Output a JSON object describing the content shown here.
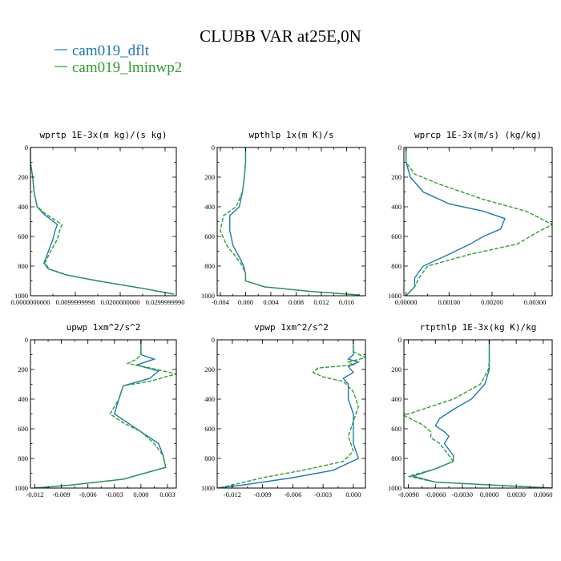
{
  "title": "CLUBB VAR at25E,0N",
  "colors": {
    "dflt": "#1f77b4",
    "lminwp2": "#2ca02c"
  },
  "chart_data": [
    {
      "type": "line",
      "title": "wprtp  1E-3x(m kg)/(s kg)",
      "xlim": [
        0.0,
        0.0325
      ],
      "ylim": [
        1000,
        0
      ],
      "y_ticks": [
        0,
        200,
        400,
        600,
        800,
        1000
      ],
      "x_ticks": [
        0.0,
        0.01,
        0.02,
        0.03
      ],
      "x_tick_labels": [
        "0.0000000000",
        "0.0099999998",
        "0.0200000000",
        "0.0299999990"
      ],
      "series": [
        {
          "name": "cam019_dflt",
          "color": "#1f77b4",
          "dashed": false,
          "points": [
            [
              0.0,
              0
            ],
            [
              0.0,
              100
            ],
            [
              0.0005,
              200
            ],
            [
              0.0008,
              300
            ],
            [
              0.0015,
              400
            ],
            [
              0.003,
              450
            ],
            [
              0.006,
              520
            ],
            [
              0.0055,
              560
            ],
            [
              0.005,
              620
            ],
            [
              0.004,
              700
            ],
            [
              0.003,
              780
            ],
            [
              0.004,
              820
            ],
            [
              0.008,
              860
            ],
            [
              0.015,
              900
            ],
            [
              0.025,
              950
            ],
            [
              0.032,
              990
            ]
          ]
        },
        {
          "name": "cam019_lminwp2",
          "color": "#2ca02c",
          "dashed": true,
          "points": [
            [
              0.0,
              0
            ],
            [
              0.0,
              100
            ],
            [
              0.0005,
              200
            ],
            [
              0.0008,
              300
            ],
            [
              0.0015,
              400
            ],
            [
              0.0035,
              450
            ],
            [
              0.007,
              520
            ],
            [
              0.0065,
              560
            ],
            [
              0.006,
              620
            ],
            [
              0.0045,
              700
            ],
            [
              0.0032,
              780
            ],
            [
              0.0042,
              820
            ],
            [
              0.0082,
              860
            ],
            [
              0.015,
              900
            ],
            [
              0.025,
              950
            ],
            [
              0.032,
              990
            ]
          ]
        }
      ]
    },
    {
      "type": "line",
      "title": "wpthlp  1x(m K)/s",
      "xlim": [
        -0.0045,
        0.019
      ],
      "ylim": [
        1000,
        0
      ],
      "y_ticks": [
        0,
        200,
        400,
        600,
        800,
        1000
      ],
      "x_ticks": [
        -0.004,
        0.0,
        0.004,
        0.008,
        0.012,
        0.016
      ],
      "x_tick_labels": [
        "-0.004",
        "0.000",
        "0.004",
        "0.008",
        "0.012",
        "0.016"
      ],
      "series": [
        {
          "name": "cam019_dflt",
          "color": "#1f77b4",
          "dashed": false,
          "points": [
            [
              0.0,
              0
            ],
            [
              0.0,
              100
            ],
            [
              -0.0002,
              200
            ],
            [
              -0.0005,
              300
            ],
            [
              -0.001,
              400
            ],
            [
              -0.0025,
              460
            ],
            [
              -0.0025,
              560
            ],
            [
              -0.002,
              660
            ],
            [
              -0.001,
              740
            ],
            [
              -0.0003,
              800
            ],
            [
              0.0,
              850
            ],
            [
              0.0,
              900
            ],
            [
              0.003,
              940
            ],
            [
              0.01,
              970
            ],
            [
              0.018,
              995
            ]
          ]
        },
        {
          "name": "cam019_lminwp2",
          "color": "#2ca02c",
          "dashed": true,
          "points": [
            [
              0.0,
              0
            ],
            [
              0.0,
              100
            ],
            [
              -0.0002,
              200
            ],
            [
              -0.0005,
              300
            ],
            [
              -0.0015,
              400
            ],
            [
              -0.0035,
              460
            ],
            [
              -0.004,
              560
            ],
            [
              -0.003,
              660
            ],
            [
              -0.0015,
              740
            ],
            [
              -0.0005,
              800
            ],
            [
              0.0,
              850
            ],
            [
              0.0,
              900
            ],
            [
              0.003,
              940
            ],
            [
              0.01,
              970
            ],
            [
              0.018,
              995
            ]
          ]
        }
      ]
    },
    {
      "type": "line",
      "title": "wprcp  1E-3x(m/s) (kg/kg)",
      "xlim": [
        -5e-05,
        0.0034
      ],
      "ylim": [
        1000,
        0
      ],
      "y_ticks": [
        0,
        200,
        400,
        600,
        800,
        1000
      ],
      "x_ticks": [
        0.0,
        0.001,
        0.002,
        0.003
      ],
      "x_tick_labels": [
        "0.00000",
        "0.00100",
        "0.00200",
        "0.00300"
      ],
      "series": [
        {
          "name": "cam019_dflt",
          "color": "#1f77b4",
          "dashed": false,
          "points": [
            [
              0.0,
              0
            ],
            [
              0.0,
              100
            ],
            [
              0.0001,
              200
            ],
            [
              0.0004,
              300
            ],
            [
              0.001,
              380
            ],
            [
              0.0018,
              430
            ],
            [
              0.0023,
              480
            ],
            [
              0.0022,
              550
            ],
            [
              0.0018,
              600
            ],
            [
              0.0015,
              650
            ],
            [
              0.001,
              720
            ],
            [
              0.0004,
              800
            ],
            [
              0.0002,
              880
            ],
            [
              0.0002,
              940
            ],
            [
              0.0,
              1000
            ]
          ]
        },
        {
          "name": "cam019_lminwp2",
          "color": "#2ca02c",
          "dashed": true,
          "points": [
            [
              0.0,
              0
            ],
            [
              0.0,
              100
            ],
            [
              0.0002,
              180
            ],
            [
              0.0008,
              250
            ],
            [
              0.0018,
              350
            ],
            [
              0.0028,
              430
            ],
            [
              0.0034,
              520
            ],
            [
              0.003,
              580
            ],
            [
              0.0026,
              650
            ],
            [
              0.0015,
              720
            ],
            [
              0.0005,
              800
            ],
            [
              0.0003,
              880
            ],
            [
              0.0002,
              940
            ],
            [
              0.0,
              1000
            ]
          ]
        }
      ]
    },
    {
      "type": "line",
      "title": "upwp  1xm^2/s^2",
      "xlim": [
        -0.0125,
        0.004
      ],
      "ylim": [
        1000,
        0
      ],
      "y_ticks": [
        0,
        200,
        400,
        600,
        800,
        1000
      ],
      "x_ticks": [
        -0.012,
        -0.009,
        -0.006,
        -0.003,
        0.0,
        0.003
      ],
      "x_tick_labels": [
        "-0.012",
        "-0.009",
        "-0.006",
        "-0.003",
        "0.000",
        "0.003"
      ],
      "series": [
        {
          "name": "cam019_dflt",
          "color": "#1f77b4",
          "dashed": false,
          "points": [
            [
              0.0,
              0
            ],
            [
              0.0,
              100
            ],
            [
              0.0015,
              130
            ],
            [
              -0.0005,
              170
            ],
            [
              0.002,
              210
            ],
            [
              0.001,
              260
            ],
            [
              -0.002,
              310
            ],
            [
              -0.0025,
              400
            ],
            [
              -0.003,
              500
            ],
            [
              -0.0015,
              560
            ],
            [
              0.0,
              620
            ],
            [
              0.002,
              700
            ],
            [
              0.0025,
              780
            ],
            [
              0.0028,
              860
            ],
            [
              -0.002,
              940
            ],
            [
              -0.008,
              980
            ],
            [
              -0.012,
              1000
            ]
          ]
        },
        {
          "name": "cam019_lminwp2",
          "color": "#2ca02c",
          "dashed": true,
          "points": [
            [
              0.0,
              0
            ],
            [
              0.0,
              100
            ],
            [
              -0.0005,
              130
            ],
            [
              -0.0015,
              160
            ],
            [
              0.001,
              190
            ],
            [
              0.004,
              230
            ],
            [
              0.001,
              280
            ],
            [
              -0.002,
              310
            ],
            [
              -0.0025,
              400
            ],
            [
              -0.0035,
              500
            ],
            [
              -0.002,
              560
            ],
            [
              0.0,
              620
            ],
            [
              0.0015,
              700
            ],
            [
              0.0025,
              780
            ],
            [
              0.0028,
              860
            ],
            [
              -0.002,
              940
            ],
            [
              -0.008,
              980
            ],
            [
              -0.012,
              1000
            ]
          ]
        }
      ]
    },
    {
      "type": "line",
      "title": "vpwp  1xm^2/s^2",
      "xlim": [
        -0.0135,
        0.0012
      ],
      "ylim": [
        1000,
        0
      ],
      "y_ticks": [
        0,
        200,
        400,
        600,
        800,
        1000
      ],
      "x_ticks": [
        -0.012,
        -0.009,
        -0.006,
        -0.003,
        0.0
      ],
      "x_tick_labels": [
        "-0.012",
        "-0.009",
        "-0.006",
        "-0.003",
        "0.000"
      ],
      "series": [
        {
          "name": "cam019_dflt",
          "color": "#1f77b4",
          "dashed": false,
          "points": [
            [
              0.0,
              0
            ],
            [
              0.0,
              100
            ],
            [
              -0.0005,
              130
            ],
            [
              0.0005,
              150
            ],
            [
              -0.0005,
              180
            ],
            [
              0.0,
              220
            ],
            [
              -0.001,
              260
            ],
            [
              -0.0005,
              300
            ],
            [
              -0.0005,
              400
            ],
            [
              0.0,
              500
            ],
            [
              0.0,
              600
            ],
            [
              0.0,
              700
            ],
            [
              0.0005,
              800
            ],
            [
              -0.002,
              880
            ],
            [
              -0.006,
              930
            ],
            [
              -0.011,
              980
            ],
            [
              -0.0135,
              1000
            ]
          ]
        },
        {
          "name": "cam019_lminwp2",
          "color": "#2ca02c",
          "dashed": true,
          "points": [
            [
              0.0,
              0
            ],
            [
              0.0,
              80
            ],
            [
              0.0012,
              120
            ],
            [
              -0.0005,
              150
            ],
            [
              0.0,
              170
            ],
            [
              -0.0035,
              190
            ],
            [
              -0.004,
              220
            ],
            [
              -0.003,
              250
            ],
            [
              -0.001,
              280
            ],
            [
              0.0,
              350
            ],
            [
              0.0005,
              450
            ],
            [
              0.0,
              550
            ],
            [
              -0.0005,
              650
            ],
            [
              0.0,
              750
            ],
            [
              -0.001,
              820
            ],
            [
              -0.005,
              880
            ],
            [
              -0.009,
              930
            ],
            [
              -0.012,
              980
            ],
            [
              -0.0135,
              1000
            ]
          ]
        }
      ]
    },
    {
      "type": "line",
      "title": "rtpthlp  1E-3x(kg K)/kg",
      "xlim": [
        -0.0095,
        0.007
      ],
      "ylim": [
        1000,
        0
      ],
      "y_ticks": [
        0,
        200,
        400,
        600,
        800,
        1000
      ],
      "x_ticks": [
        -0.009,
        -0.006,
        -0.003,
        0.0,
        0.003,
        0.006
      ],
      "x_tick_labels": [
        "-0.0090",
        "-0.0060",
        "-0.0030",
        "0.0000",
        "0.0030",
        "0.0060"
      ],
      "series": [
        {
          "name": "cam019_dflt",
          "color": "#1f77b4",
          "dashed": false,
          "points": [
            [
              0.0,
              0
            ],
            [
              0.0,
              150
            ],
            [
              0.0,
              200
            ],
            [
              -0.0005,
              300
            ],
            [
              -0.002,
              400
            ],
            [
              -0.004,
              470
            ],
            [
              -0.0055,
              530
            ],
            [
              -0.006,
              580
            ],
            [
              -0.005,
              620
            ],
            [
              -0.0045,
              650
            ],
            [
              -0.005,
              700
            ],
            [
              -0.004,
              780
            ],
            [
              -0.004,
              820
            ],
            [
              -0.006,
              870
            ],
            [
              -0.0085,
              920
            ],
            [
              -0.006,
              960
            ],
            [
              0.007,
              1000
            ]
          ]
        },
        {
          "name": "cam019_lminwp2",
          "color": "#2ca02c",
          "dashed": true,
          "points": [
            [
              0.0,
              0
            ],
            [
              0.0,
              150
            ],
            [
              -0.0001,
              200
            ],
            [
              -0.001,
              300
            ],
            [
              -0.004,
              400
            ],
            [
              -0.007,
              460
            ],
            [
              -0.0095,
              510
            ],
            [
              -0.0075,
              570
            ],
            [
              -0.0065,
              620
            ],
            [
              -0.0065,
              660
            ],
            [
              -0.0055,
              700
            ],
            [
              -0.0045,
              780
            ],
            [
              -0.004,
              820
            ],
            [
              -0.006,
              870
            ],
            [
              -0.009,
              920
            ],
            [
              -0.006,
              960
            ],
            [
              0.007,
              1000
            ]
          ]
        }
      ]
    }
  ],
  "legend": [
    {
      "label": "cam019_dflt",
      "color": "#1f77b4"
    },
    {
      "label": "cam019_lminwp2",
      "color": "#2ca02c"
    }
  ]
}
